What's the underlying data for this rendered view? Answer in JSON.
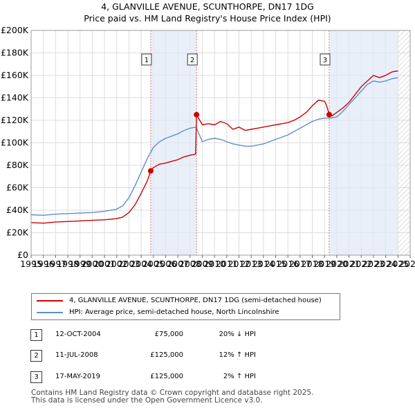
{
  "title_line1": "4, GLANVILLE AVENUE, SCUNTHORPE, DN17 1DG",
  "title_line2": "Price paid vs. HM Land Registry's House Price Index (HPI)",
  "chart_data": {
    "type": "line",
    "title": "4, GLANVILLE AVENUE, SCUNTHORPE, DN17 1DG — Price paid vs. HM Land Registry's House Price Index (HPI)",
    "xlabel": "",
    "ylabel": "",
    "xlim": [
      1995,
      2026
    ],
    "ylim": [
      0,
      200000
    ],
    "y_ticks": [
      0,
      20000,
      40000,
      60000,
      80000,
      100000,
      120000,
      140000,
      160000,
      180000,
      200000
    ],
    "y_tick_labels": [
      "£0",
      "£20K",
      "£40K",
      "£60K",
      "£80K",
      "£100K",
      "£120K",
      "£140K",
      "£160K",
      "£180K",
      "£200K"
    ],
    "x_ticks": [
      1995,
      1996,
      1997,
      1998,
      1999,
      2000,
      2001,
      2002,
      2003,
      2004,
      2005,
      2006,
      2007,
      2008,
      2009,
      2010,
      2011,
      2012,
      2013,
      2014,
      2015,
      2016,
      2017,
      2018,
      2019,
      2020,
      2021,
      2022,
      2023,
      2024,
      2025,
      2026
    ],
    "x_tick_labels": [
      "1995",
      "1996",
      "1997",
      "1998",
      "1999",
      "2000",
      "2001",
      "2002",
      "2003",
      "2004",
      "2005",
      "2006",
      "2007",
      "2008",
      "2009",
      "2010",
      "2011",
      "2012",
      "2013",
      "2014",
      "2015",
      "2016",
      "2017",
      "2018",
      "2019",
      "2020",
      "2021",
      "2022",
      "2023",
      "2024",
      "2025",
      "2026"
    ],
    "grid": true,
    "hatched_after": 2025.0,
    "series": [
      {
        "name": "4, GLANVILLE AVENUE, SCUNTHORPE, DN17 1DG (semi-detached house)",
        "color": "#cc0000",
        "x": [
          1995.0,
          1996.0,
          1997.0,
          1998.0,
          1999.0,
          2000.0,
          2001.0,
          2002.0,
          2002.5,
          2003.0,
          2003.5,
          2004.0,
          2004.5,
          2004.78,
          2005.0,
          2005.5,
          2006.0,
          2006.5,
          2007.0,
          2007.5,
          2008.0,
          2008.45,
          2008.53,
          2009.0,
          2009.5,
          2010.0,
          2010.5,
          2011.0,
          2011.5,
          2012.0,
          2012.5,
          2013.0,
          2013.5,
          2014.0,
          2014.5,
          2015.0,
          2015.5,
          2016.0,
          2016.5,
          2017.0,
          2017.5,
          2018.0,
          2018.5,
          2019.0,
          2019.2,
          2019.38,
          2019.6,
          2020.0,
          2020.5,
          2021.0,
          2021.5,
          2022.0,
          2022.5,
          2023.0,
          2023.5,
          2024.0,
          2024.5,
          2025.0
        ],
        "y": [
          29000,
          28500,
          29500,
          30000,
          30500,
          31000,
          31500,
          32500,
          34000,
          38000,
          45000,
          55000,
          66000,
          75000,
          78000,
          81000,
          82000,
          83500,
          85000,
          87500,
          89000,
          90000,
          125000,
          116000,
          117000,
          116000,
          119000,
          117000,
          112000,
          114000,
          111000,
          112000,
          113000,
          114000,
          115000,
          116000,
          117000,
          118000,
          120000,
          123000,
          127000,
          133000,
          138000,
          137000,
          132000,
          125000,
          124000,
          127000,
          131000,
          136000,
          143000,
          150000,
          155000,
          160000,
          158000,
          160000,
          163000,
          164000
        ]
      },
      {
        "name": "HPI: Average price, semi-detached house, North Lincolnshire",
        "color": "#5b8ec8",
        "x": [
          1995.0,
          1996.0,
          1997.0,
          1998.0,
          1999.0,
          2000.0,
          2001.0,
          2002.0,
          2002.5,
          2003.0,
          2003.5,
          2004.0,
          2004.5,
          2005.0,
          2005.5,
          2006.0,
          2006.5,
          2007.0,
          2007.5,
          2008.0,
          2008.5,
          2009.0,
          2009.5,
          2010.0,
          2010.5,
          2011.0,
          2011.5,
          2012.0,
          2012.5,
          2013.0,
          2013.5,
          2014.0,
          2014.5,
          2015.0,
          2015.5,
          2016.0,
          2016.5,
          2017.0,
          2017.5,
          2018.0,
          2018.5,
          2019.0,
          2019.5,
          2020.0,
          2020.5,
          2021.0,
          2021.5,
          2022.0,
          2022.5,
          2023.0,
          2023.5,
          2024.0,
          2024.5,
          2025.0
        ],
        "y": [
          36000,
          35500,
          36500,
          37000,
          37500,
          38000,
          39000,
          41000,
          44000,
          51000,
          62000,
          74000,
          86000,
          96000,
          101000,
          104000,
          106000,
          108000,
          111000,
          113000,
          114000,
          101000,
          103000,
          104000,
          103000,
          101000,
          99000,
          98000,
          97000,
          97000,
          98000,
          99000,
          101000,
          103000,
          105000,
          107000,
          110000,
          113000,
          116000,
          119000,
          121000,
          122000,
          122000,
          123000,
          128000,
          134000,
          140000,
          146000,
          152000,
          155000,
          154000,
          155000,
          157000,
          158000
        ]
      }
    ],
    "sales": [
      {
        "label": "1",
        "x": 2004.78,
        "y": 75000
      },
      {
        "label": "2",
        "x": 2008.53,
        "y": 125000
      },
      {
        "label": "3",
        "x": 2019.38,
        "y": 125000
      }
    ]
  },
  "legend": {
    "property": "4, GLANVILLE AVENUE, SCUNTHORPE, DN17 1DG (semi-detached house)",
    "hpi": "HPI: Average price, semi-detached house, North Lincolnshire",
    "property_color": "#cc0000",
    "hpi_color": "#5b8ec8"
  },
  "transactions": [
    {
      "num": "1",
      "date": "12-OCT-2004",
      "price": "£75,000",
      "hpi": "20% ↓ HPI"
    },
    {
      "num": "2",
      "date": "11-JUL-2008",
      "price": "£125,000",
      "hpi": "12% ↑ HPI"
    },
    {
      "num": "3",
      "date": "17-MAY-2019",
      "price": "£125,000",
      "hpi": "2% ↑ HPI"
    }
  ],
  "footer_line1": "Contains HM Land Registry data © Crown copyright and database right 2025.",
  "footer_line2": "This data is licensed under the Open Government Licence v3.0."
}
